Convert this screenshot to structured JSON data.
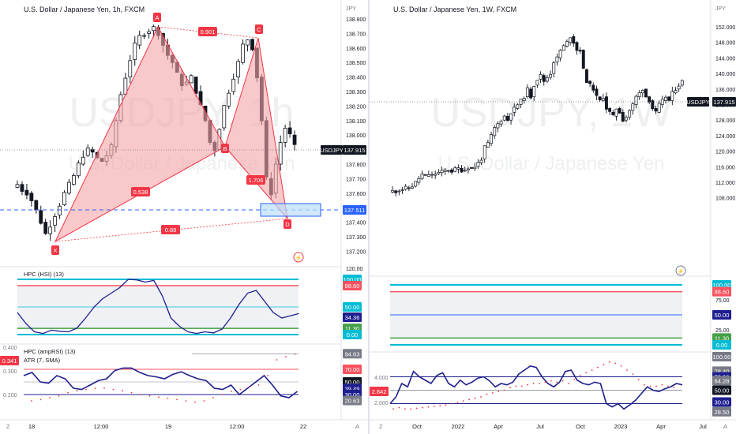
{
  "left": {
    "title": "U.S. Dollar / Japanese Yen, 1h, FXCM",
    "currency": "JPY",
    "watermark_symbol": "USDJPY, 1h",
    "watermark_name": "U.S. Dollar / Japanese Yen",
    "price_axis": [
      "138.800",
      "138.700",
      "138.600",
      "138.500",
      "138.400",
      "138.300",
      "138.200",
      "138.100",
      "138.000",
      "137.900",
      "137.800",
      "137.700",
      "137.600",
      "137.500",
      "137.400",
      "137.300",
      "137.200"
    ],
    "symbol_tag": "USDJPY",
    "last_price": "137.915",
    "target_price": "137.511",
    "pattern_points": {
      "X": "X",
      "A": "A",
      "B": "B",
      "C": "C",
      "D": "D"
    },
    "ratios": {
      "ab": "0.538",
      "ac": "0.901",
      "bd": "1.706",
      "xd": "0.88"
    },
    "hsi": {
      "title": "HPC (HSI) (13)",
      "scale": [
        "120.00",
        "100.00",
        "88.60",
        "50.00",
        "34.36",
        "11.30",
        "0.00"
      ]
    },
    "amprsi": {
      "title": "HPC (ampRSI) (13)",
      "subtitle": "ATR (7, SMA)",
      "atr_value": "0.341",
      "left_axis": [
        "0.400",
        "0.300",
        "0.200"
      ],
      "scale": [
        "94.63",
        "70.00",
        "50.00",
        "39.49",
        "30.00",
        "20.63"
      ]
    },
    "time_axis": [
      "18",
      "12:00",
      "19",
      "12:00",
      "22"
    ],
    "time_axis_corner": "A",
    "tz_corner": "Z"
  },
  "right": {
    "title": "U.S. Dollar / Japanese Yen, 1W, FXCM",
    "currency": "JPY",
    "watermark_symbol": "USDJPY, 1W",
    "watermark_name": "U.S. Dollar / Japanese Yen",
    "price_axis": [
      "152.000",
      "148.000",
      "144.000",
      "140.000",
      "136.000",
      "132.000",
      "128.000",
      "124.000",
      "120.000",
      "116.000",
      "112.000",
      "108.000"
    ],
    "symbol_tag": "USDJPY",
    "last_price": "137.915",
    "hsi": {
      "scale": [
        "100.00",
        "88.60",
        "75.00",
        "50.00",
        "25.00",
        "11.30",
        "0.00"
      ]
    },
    "amprsi": {
      "atr_value": "2.842",
      "left_axis": [
        "4.000",
        "2.000"
      ],
      "scale": [
        "100.00",
        "78.40",
        "70.00",
        "64.28",
        "50.00",
        "30.00",
        "28.50"
      ]
    },
    "time_axis": [
      "Oct",
      "2022",
      "Apr",
      "Jul",
      "Oct",
      "2023",
      "Apr",
      "Jul"
    ],
    "time_axis_corner": "A",
    "tz_corner": "Z"
  },
  "colors": {
    "bull": "#ffffff",
    "bear": "#131722",
    "pattern_fill": "#f5a3a6",
    "pattern_line": "#f23645",
    "label_bg": "#f23645",
    "cyan": "#00bcd4",
    "red": "#f7525f",
    "green": "#43a047",
    "navy": "#1e1e8f",
    "tag_dark": "#131722"
  }
}
